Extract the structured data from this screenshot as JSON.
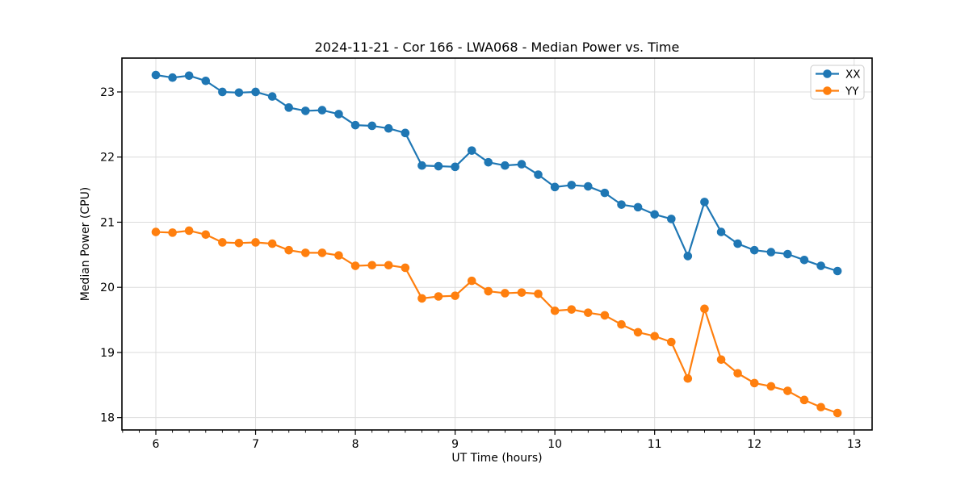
{
  "chart_data": {
    "type": "line",
    "title": "2024-11-21 - Cor 166 - LWA068 - Median Power vs. Time",
    "xlabel": "UT Time (hours)",
    "ylabel": "Median Power (CPU)",
    "xlim": [
      5.66,
      13.18
    ],
    "ylim": [
      17.81,
      23.52
    ],
    "x_ticks": [
      6,
      7,
      8,
      9,
      10,
      11,
      12,
      13
    ],
    "y_ticks": [
      18,
      19,
      20,
      21,
      22,
      23
    ],
    "x_minor_tick_interval_hours": 0.16667,
    "grid": true,
    "legend_position": "upper right",
    "background_color": "#ffffff",
    "grid_color": "#dcdcdc",
    "x": [
      6.0,
      6.167,
      6.333,
      6.5,
      6.667,
      6.833,
      7.0,
      7.167,
      7.333,
      7.5,
      7.667,
      7.833,
      8.0,
      8.167,
      8.333,
      8.5,
      8.667,
      8.833,
      9.0,
      9.167,
      9.333,
      9.5,
      9.667,
      9.833,
      10.0,
      10.167,
      10.333,
      10.5,
      10.667,
      10.833,
      11.0,
      11.167,
      11.333,
      11.5,
      11.667,
      11.833,
      12.0,
      12.167,
      12.333,
      12.5,
      12.667,
      12.833
    ],
    "series": [
      {
        "name": "XX",
        "color": "#1f77b4",
        "values": [
          23.26,
          23.22,
          23.25,
          23.17,
          23.0,
          22.99,
          23.0,
          22.93,
          22.76,
          22.71,
          22.72,
          22.66,
          22.49,
          22.48,
          22.44,
          22.37,
          21.87,
          21.86,
          21.85,
          22.1,
          21.92,
          21.87,
          21.89,
          21.73,
          21.54,
          21.57,
          21.55,
          21.45,
          21.27,
          21.23,
          21.12,
          21.05,
          20.48,
          21.31,
          20.85,
          20.67,
          20.57,
          20.54,
          20.51,
          20.42,
          20.33,
          20.25
        ]
      },
      {
        "name": "YY",
        "color": "#ff7f0e",
        "values": [
          20.85,
          20.84,
          20.87,
          20.81,
          20.69,
          20.68,
          20.69,
          20.67,
          20.57,
          20.53,
          20.53,
          20.49,
          20.33,
          20.34,
          20.34,
          20.3,
          19.83,
          19.86,
          19.87,
          20.1,
          19.94,
          19.91,
          19.92,
          19.9,
          19.64,
          19.66,
          19.61,
          19.57,
          19.43,
          19.31,
          19.25,
          19.16,
          18.6,
          19.67,
          18.89,
          18.68,
          18.53,
          18.48,
          18.41,
          18.27,
          18.16,
          18.07
        ]
      }
    ]
  }
}
